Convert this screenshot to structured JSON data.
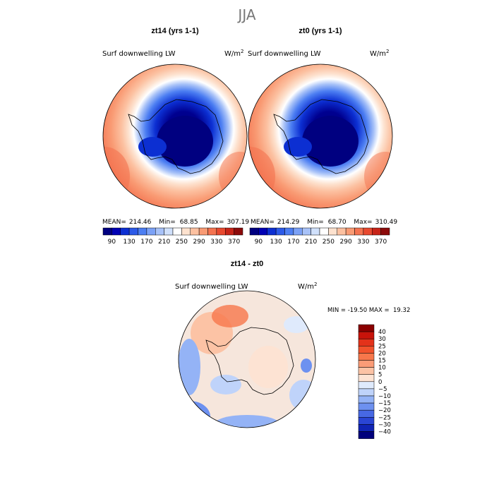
{
  "season": "JJA",
  "panels": [
    {
      "title": "zt14 (yrs 1-1)",
      "variable": "Surf downwelling LW",
      "units_base": "W/m",
      "units_exp": "2",
      "mean_label": "MEAN=",
      "mean": "214.46",
      "min_label": "Min=",
      "min": "68.85",
      "max_label": "Max=",
      "max": "307.19"
    },
    {
      "title": "zt0 (yrs 1-1)",
      "variable": "Surf downwelling LW",
      "units_base": "W/m",
      "units_exp": "2",
      "mean_label": "MEAN=",
      "mean": "214.29",
      "min_label": "Min=",
      "min": "68.70",
      "max_label": "Max=",
      "max": "310.49"
    }
  ],
  "abs_colorbar": {
    "ticks": [
      "90",
      "130",
      "170",
      "210",
      "250",
      "290",
      "330",
      "370"
    ],
    "colors": [
      "#000080",
      "#0000b4",
      "#0c2fd2",
      "#2c5ae8",
      "#4c7ef2",
      "#7ba1f6",
      "#a8c2f8",
      "#d0e0fb",
      "#ffffff",
      "#fde2cf",
      "#fcc1a1",
      "#f99b74",
      "#f47350",
      "#e8492f",
      "#c72418",
      "#8c0a0a"
    ]
  },
  "diff": {
    "title": "zt14 - zt0",
    "variable": "Surf downwelling LW",
    "units_base": "W/m",
    "units_exp": "2",
    "stats": "MIN = -19.50 MAX =  19.32",
    "colorbar_ticks": [
      "40",
      "30",
      "25",
      "20",
      "15",
      "10",
      "5",
      "0",
      "−5",
      "−10",
      "−15",
      "−20",
      "−25",
      "−30",
      "−40"
    ],
    "colorbar_colors": [
      "#8b0000",
      "#c8130a",
      "#e3321a",
      "#f1522c",
      "#f7774b",
      "#fb9c77",
      "#fcc3a5",
      "#fde3d3",
      "#dfeafc",
      "#bfd3fa",
      "#94b3f6",
      "#6d91f0",
      "#4768e4",
      "#2a45d4",
      "#1024b4",
      "#00007c"
    ]
  }
}
